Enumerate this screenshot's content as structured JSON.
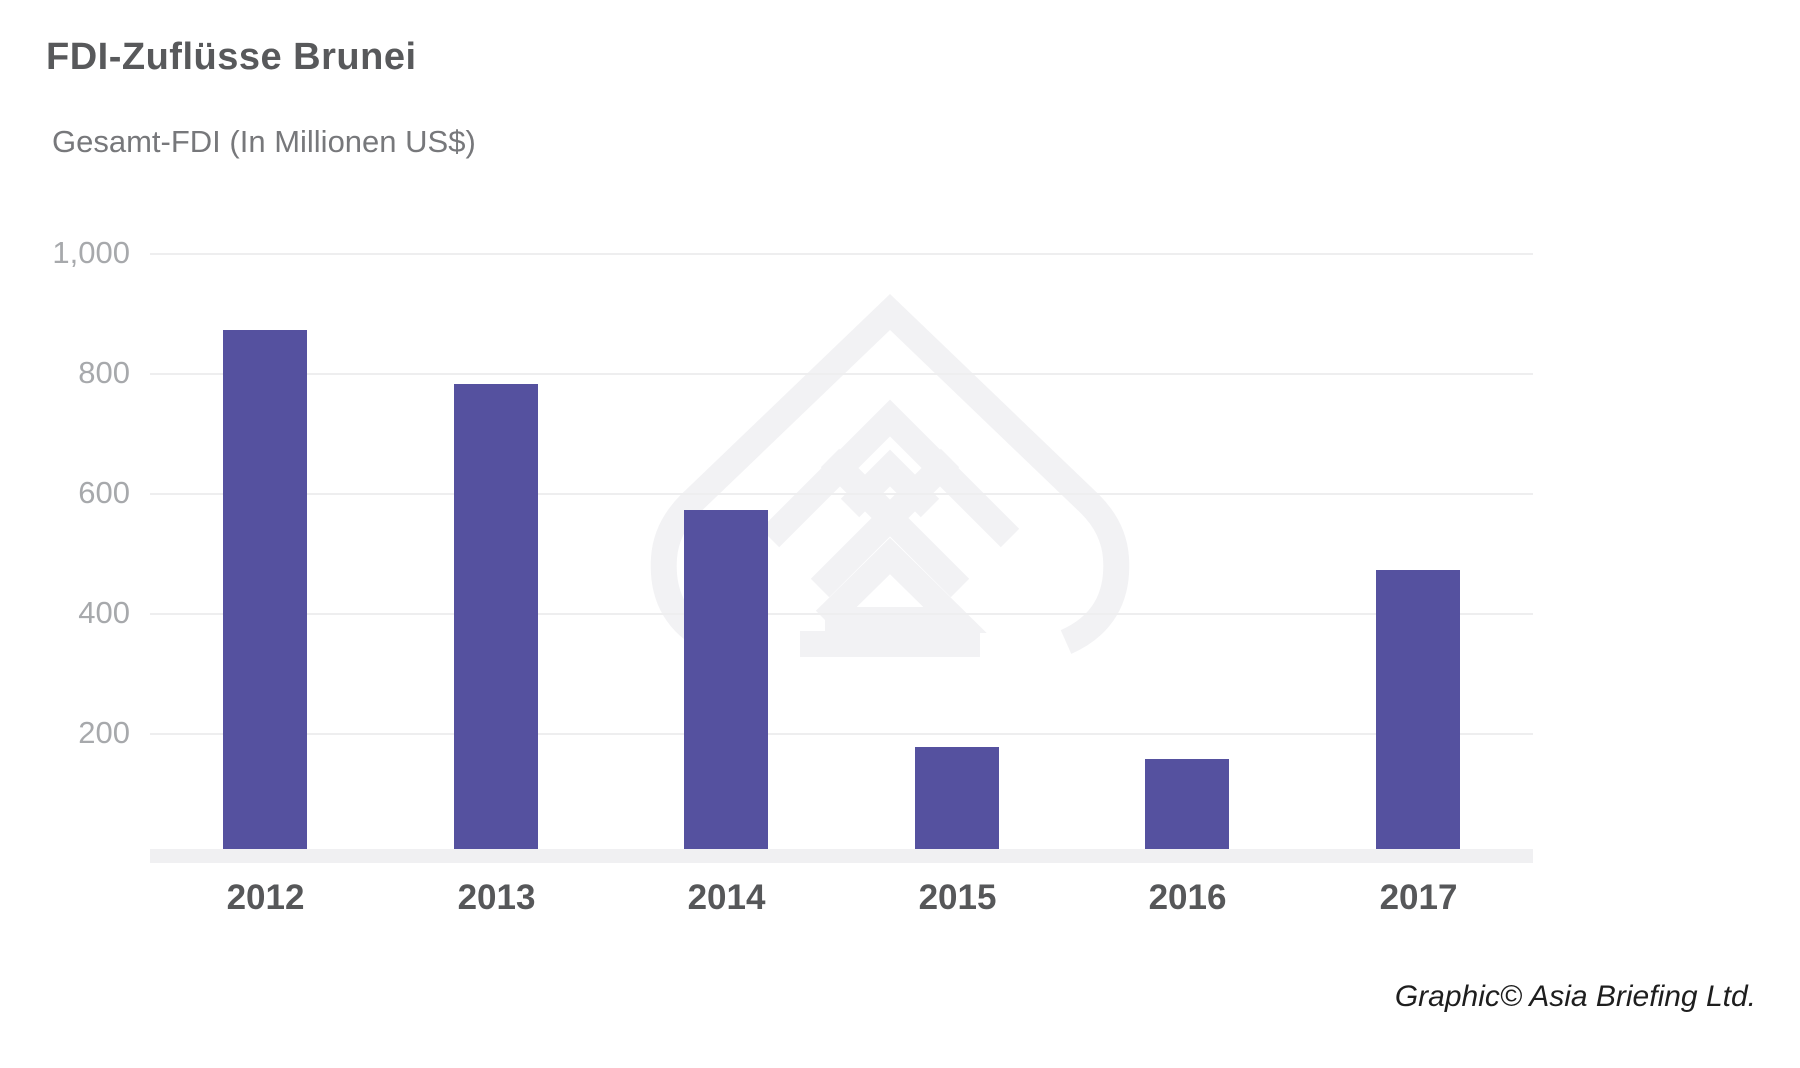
{
  "title": "FDI-Zuflüsse Brunei",
  "subtitle": "Gesamt-FDI (In Millionen US$)",
  "credit": "Graphic© Asia Briefing Ltd.",
  "colors": {
    "bar": "#55519f",
    "title_text": "#58595b",
    "subtitle_text": "#77787b",
    "y_tick_text": "#a7a9ac",
    "x_tick_text": "#565759",
    "gridline": "#eeeeef",
    "axis_band": "#f0f0f2",
    "watermark": "#f2f2f4",
    "credit_text": "#1e1e1e"
  },
  "watermark_icon": "asia-briefing-logo",
  "chart_data": {
    "type": "bar",
    "title": "FDI-Zuflüsse Brunei",
    "ylabel": "Gesamt-FDI (In Millionen US$)",
    "xlabel": "",
    "categories": [
      "2012",
      "2013",
      "2014",
      "2015",
      "2016",
      "2017"
    ],
    "values": [
      865,
      775,
      565,
      170,
      150,
      465
    ],
    "ylim": [
      0,
      1000
    ],
    "yticks": [
      200,
      400,
      600,
      800,
      1000
    ],
    "ytick_labels": [
      "200",
      "400",
      "600",
      "800",
      "1,000"
    ],
    "grid": true,
    "legend": false,
    "bar_color": "#55519f"
  }
}
